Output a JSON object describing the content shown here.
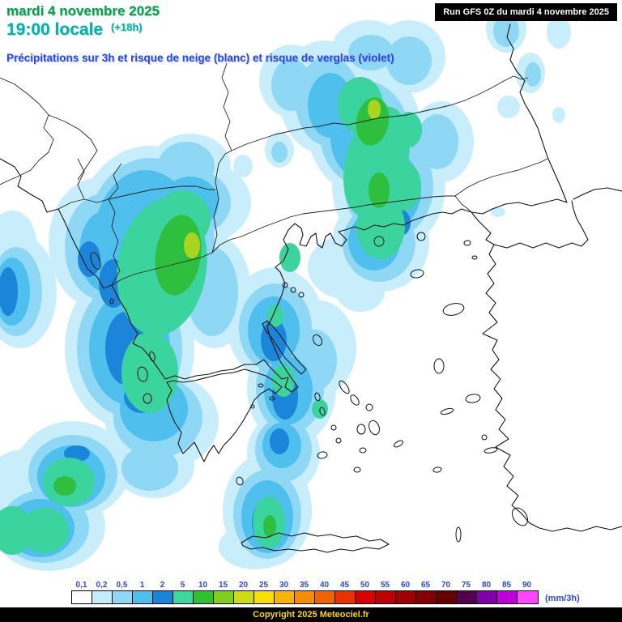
{
  "header": {
    "date": "mardi 4 novembre 2025",
    "time": "19:00 locale",
    "offset": "(+18h)",
    "subtitle": "Précipitations sur 3h et risque de neige (blanc) et risque de verglas (violet)",
    "run_info": "Run GFS 0Z du mardi 4 novembre 2025",
    "date_color": "#00A24B",
    "time_color": "#00B2AC",
    "subtitle_color": "#2B46E6",
    "run_bg": "#000000",
    "run_fg": "#FFFFFF"
  },
  "legend": {
    "values": [
      "0,1",
      "0,2",
      "0,5",
      "1",
      "2",
      "5",
      "10",
      "15",
      "20",
      "25",
      "30",
      "35",
      "40",
      "45",
      "50",
      "55",
      "60",
      "65",
      "70",
      "75",
      "80",
      "85",
      "90"
    ],
    "colors": [
      "#FFFFFF",
      "#C3ECFA",
      "#8ED8F5",
      "#4EBEEC",
      "#1B84D8",
      "#3FD6A0",
      "#2EC12E",
      "#7FCE1F",
      "#CBDC13",
      "#F6DE0A",
      "#F6B408",
      "#F28D05",
      "#EE6302",
      "#E83301",
      "#D50000",
      "#BA0000",
      "#9E0000",
      "#830000",
      "#670000",
      "#55004F",
      "#7D00A8",
      "#BC00D8",
      "#FF46FF"
    ],
    "unit": "(mm/3h)",
    "label_color": "#2B46E6"
  },
  "footer": {
    "copyright": "Copyright 2025 Meteociel.fr",
    "bar_bg": "#000000",
    "text_color": "#FFD700"
  }
}
